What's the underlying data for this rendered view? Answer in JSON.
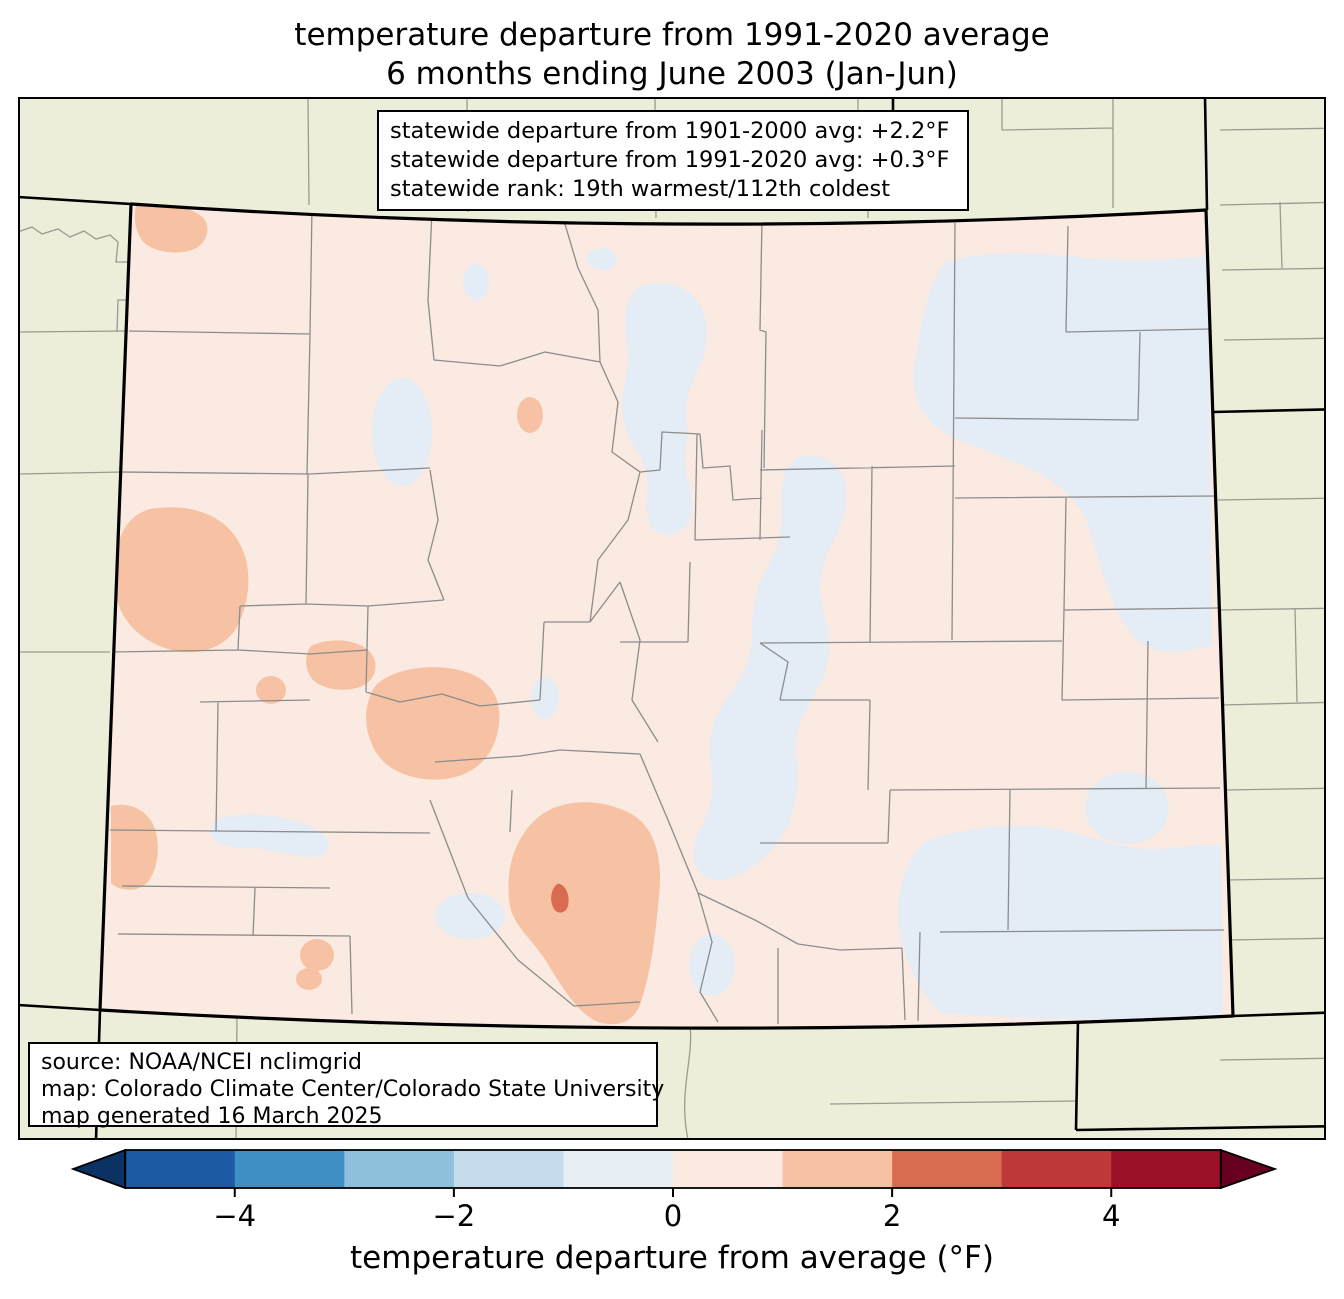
{
  "title": {
    "line1": "temperature departure from 1991-2020 average",
    "line2": "6 months ending June 2003 (Jan-Jun)"
  },
  "stats_box": {
    "lines": [
      "statewide departure from 1901-2000 avg: +2.2°F",
      "statewide departure from 1991-2020 avg: +0.3°F",
      "statewide rank: 19th warmest/112th coldest"
    ]
  },
  "source_box": {
    "lines": [
      "source: NOAA/NCEI nclimgrid",
      "map: Colorado Climate Center/Colorado State University",
      "map generated 16 March 2025"
    ]
  },
  "colorbar": {
    "label": "temperature departure from average (°F)",
    "axis_min": -5,
    "axis_max": 5,
    "ticks": [
      {
        "value": -4,
        "label": "−4"
      },
      {
        "value": -2,
        "label": "−2"
      },
      {
        "value": 0,
        "label": "0"
      },
      {
        "value": 2,
        "label": "2"
      },
      {
        "value": 4,
        "label": "4"
      }
    ],
    "under_color": "#0a3263",
    "over_color": "#67001f",
    "segments": [
      {
        "from": -5,
        "to": -4,
        "color": "#1c5ba3"
      },
      {
        "from": -4,
        "to": -3,
        "color": "#3f8ec4"
      },
      {
        "from": -3,
        "to": -2,
        "color": "#8ec0dc"
      },
      {
        "from": -2,
        "to": -1,
        "color": "#c6dcec"
      },
      {
        "from": -1,
        "to": 0,
        "color": "#e7eff5"
      },
      {
        "from": 0,
        "to": 1,
        "color": "#fbeae1"
      },
      {
        "from": 1,
        "to": 2,
        "color": "#f6c2a3"
      },
      {
        "from": 2,
        "to": 3,
        "color": "#d96b50"
      },
      {
        "from": 3,
        "to": 4,
        "color": "#c03839"
      },
      {
        "from": 4,
        "to": 5,
        "color": "#9c1127"
      }
    ]
  },
  "map": {
    "state": "Colorado",
    "background_color": "#edeeda",
    "state_border_color": "#000000",
    "county_line_color": "#8c8c8c",
    "bins": {
      "base_0_to_plus1": "#fbeae1",
      "cool_minus1_to_0": "#e4ecf5",
      "warm_plus1_to_plus2": "#f6c2a3",
      "hot_plus2_to_plus3": "#d96b50"
    }
  }
}
